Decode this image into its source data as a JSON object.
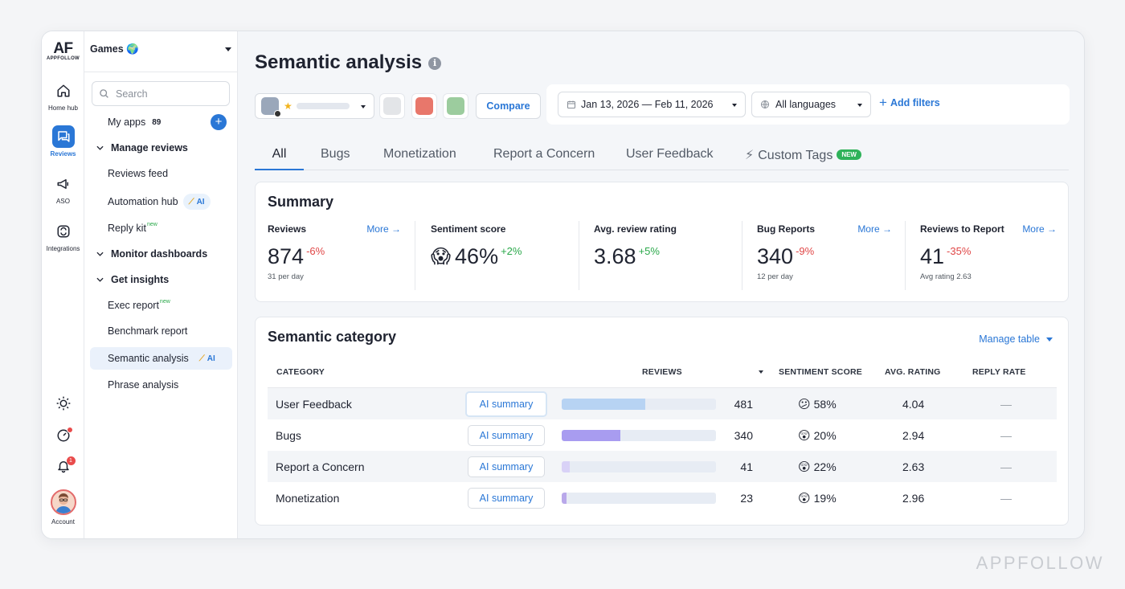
{
  "rail": {
    "logo": "AF",
    "logo_sub": "APPFOLLOW",
    "items": [
      {
        "label": "Home hub",
        "icon": "home-icon"
      },
      {
        "label": "Reviews",
        "icon": "reviews-icon"
      },
      {
        "label": "ASO",
        "icon": "megaphone-icon"
      },
      {
        "label": "Integrations",
        "icon": "integrations-icon"
      }
    ],
    "notification_count": "1",
    "account_label": "Account"
  },
  "sidebar": {
    "workspace": "Games 🌍",
    "search_placeholder": "Search",
    "my_apps": {
      "label": "My apps",
      "count": "89"
    },
    "manage_reviews": "Manage reviews",
    "reviews_feed": "Reviews feed",
    "automation_hub": "Automation hub",
    "reply_kit": "Reply kit",
    "monitor_dashboards": "Monitor dashboards",
    "get_insights": "Get insights",
    "exec_report": "Exec report",
    "benchmark_report": "Benchmark report",
    "semantic_analysis": "Semantic analysis",
    "phrase_analysis": "Phrase analysis",
    "new_tag": "new",
    "ai_tag": "AI"
  },
  "header": {
    "title": "Semantic analysis",
    "info": "i",
    "compare": "Compare",
    "date_range": "Jan 13, 2026 — Feb 11, 2026",
    "languages": "All languages",
    "add_filters": "Add filters",
    "swatch_colors": [
      "#e3e5e8",
      "#e8776b",
      "#9ccc9e"
    ]
  },
  "tabs": [
    {
      "label": "All"
    },
    {
      "label": "Bugs"
    },
    {
      "label": "Monetization"
    },
    {
      "label": "Report a Concern"
    },
    {
      "label": "User Feedback"
    },
    {
      "label": "Custom Tags",
      "badge": "NEW"
    }
  ],
  "summary": {
    "title": "Summary",
    "more": "More",
    "metrics": [
      {
        "label": "Reviews",
        "value": "874",
        "delta": "-6%",
        "sub": "31 per day"
      },
      {
        "label": "Sentiment score",
        "emoji": "😱",
        "value": "46%",
        "delta": "+2%"
      },
      {
        "label": "Avg. review rating",
        "value": "3.68",
        "delta": "+5%"
      },
      {
        "label": "Bug Reports",
        "value": "340",
        "delta": "-9%",
        "sub": "12 per day"
      },
      {
        "label": "Reviews to Report",
        "value": "41",
        "delta": "-35%",
        "sub": "Avg rating 2.63"
      }
    ]
  },
  "semantic": {
    "title": "Semantic category",
    "manage_table": "Manage table",
    "columns": {
      "category": "CATEGORY",
      "reviews": "REVIEWS",
      "sentiment": "SENTIMENT SCORE",
      "rating": "AVG. RATING",
      "reply": "REPLY RATE"
    },
    "ai_summary": "AI summary",
    "rows": [
      {
        "category": "User Feedback",
        "reviews": "481",
        "share": 0.54,
        "bar_color": "#b7d3f3",
        "emoji": "😕",
        "sentiment": "58%",
        "rating": "4.04",
        "reply": "—"
      },
      {
        "category": "Bugs",
        "reviews": "340",
        "share": 0.38,
        "bar_color": "#a89cf0",
        "emoji": "😲",
        "sentiment": "20%",
        "rating": "2.94",
        "reply": "—"
      },
      {
        "category": "Report a Concern",
        "reviews": "41",
        "share": 0.05,
        "bar_color": "#d9d2f7",
        "emoji": "😲",
        "sentiment": "22%",
        "rating": "2.63",
        "reply": "—"
      },
      {
        "category": "Monetization",
        "reviews": "23",
        "share": 0.03,
        "bar_color": "#b9a8ea",
        "emoji": "😲",
        "sentiment": "19%",
        "rating": "2.96",
        "reply": "—"
      }
    ]
  },
  "watermark": "APPFOLLOW"
}
